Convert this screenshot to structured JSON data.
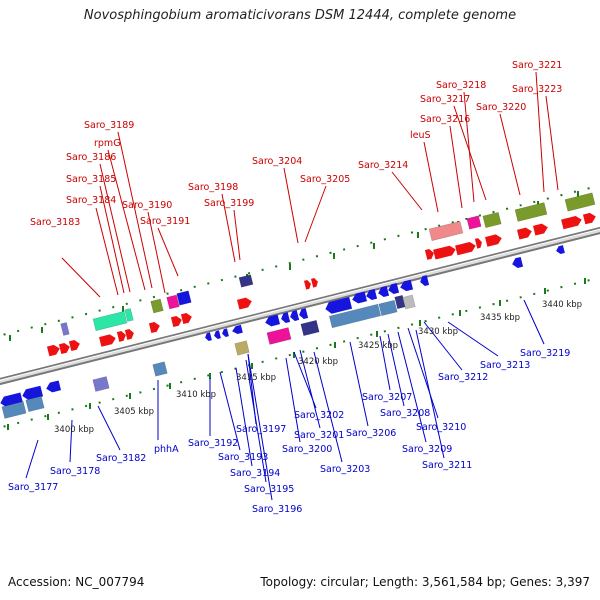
{
  "title": "Novosphingobium aromaticivorans DSM 12444, complete genome",
  "accession": "Accession: NC_007794",
  "summary": "Topology: circular; Length: 3,561,584 bp; Genes: 3,397",
  "colors": {
    "forward_label": "#cc0000",
    "reverse_label": "#0000cc",
    "backbone": "#888888"
  },
  "scale_ticks": [
    "3400 kbp",
    "3405 kbp",
    "3410 kbp",
    "3415 kbp",
    "3420 kbp",
    "3425 kbp",
    "3430 kbp",
    "3435 kbp",
    "3440 kbp"
  ],
  "forward_labels": [
    "Saro_3183",
    "Saro_3184",
    "Saro_3185",
    "Saro_3186",
    "rpmG",
    "Saro_3189",
    "Saro_3190",
    "Saro_3191",
    "Saro_3198",
    "Saro_3199",
    "Saro_3204",
    "Saro_3205",
    "Saro_3214",
    "leuS",
    "Saro_3216",
    "Saro_3217",
    "Saro_3218",
    "Saro_3220",
    "Saro_3221",
    "Saro_3223"
  ],
  "reverse_labels": [
    "Saro_3177",
    "Saro_3178",
    "Saro_3182",
    "phhA",
    "Saro_3192",
    "Saro_3193",
    "Saro_3194",
    "Saro_3195",
    "Saro_3196",
    "Saro_3197",
    "Saro_3200",
    "Saro_3201",
    "Saro_3202",
    "Saro_3203",
    "Saro_3206",
    "Saro_3207",
    "Saro_3208",
    "Saro_3209",
    "Saro_3210",
    "Saro_3211",
    "Saro_3212",
    "Saro_3213",
    "Saro_3219"
  ]
}
